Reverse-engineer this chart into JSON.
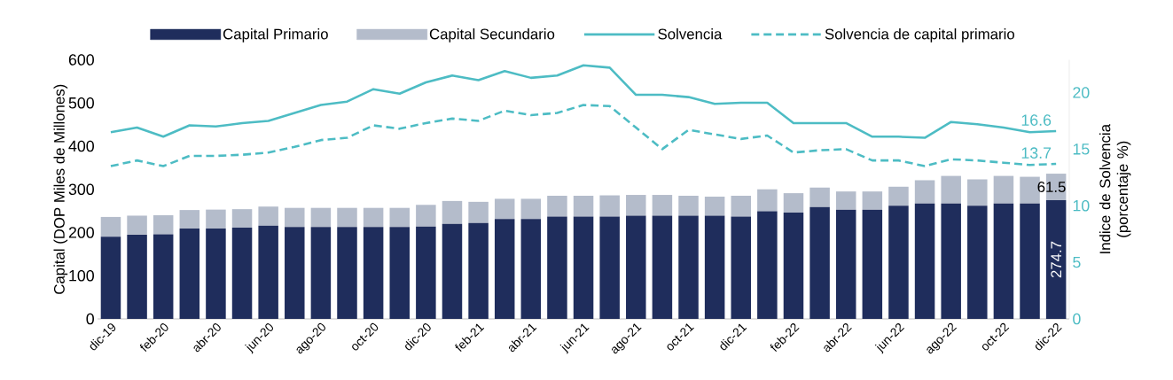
{
  "chart_data": {
    "type": "bar",
    "stacked": true,
    "categories": [
      "dic-19",
      null,
      "feb-20",
      null,
      "abr-20",
      null,
      "jun-20",
      null,
      "ago-20",
      null,
      "oct-20",
      null,
      "dic-20",
      null,
      "feb-21",
      null,
      "abr-21",
      null,
      "jun-21",
      null,
      "ago-21",
      null,
      "oct-21",
      null,
      "dic-21",
      null,
      "feb-22",
      null,
      "abr-22",
      null,
      "jun-22",
      null,
      "ago-22",
      null,
      "oct-22",
      null,
      "dic-22"
    ],
    "ylabel": "Capital (DOP Miles de Millones)",
    "y2label": "Indice de Solvencia (porcentaje %)",
    "ylim": [
      0,
      600
    ],
    "yticks": [
      0,
      100,
      200,
      300,
      400,
      500,
      600
    ],
    "y2lim": [
      0,
      22.9
    ],
    "y2ticks": [
      0,
      5,
      10,
      15,
      20
    ],
    "legend": "top",
    "series": [
      {
        "name": "Capital Primario",
        "color": "#1f2d5c",
        "values": [
          190,
          195,
          196,
          209,
          209,
          211,
          216,
          213,
          213,
          213,
          213,
          213,
          214,
          220,
          222,
          231,
          231,
          237,
          237,
          237,
          239,
          239,
          239,
          239,
          237,
          249,
          246,
          259,
          253,
          253,
          262,
          267,
          267,
          262,
          267,
          267,
          274.7
        ],
        "value_labels": [
          null,
          null,
          null,
          null,
          null,
          null,
          null,
          null,
          null,
          null,
          null,
          null,
          null,
          null,
          null,
          null,
          null,
          null,
          null,
          null,
          null,
          null,
          null,
          null,
          null,
          null,
          null,
          null,
          null,
          null,
          null,
          null,
          null,
          null,
          null,
          null,
          "274.7"
        ]
      },
      {
        "name": "Capital Secundario",
        "color": "#b4bccb",
        "values": [
          46,
          44,
          44,
          43,
          44,
          43,
          44,
          44,
          44,
          44,
          44,
          44,
          50,
          53,
          49,
          47,
          47,
          48,
          48,
          49,
          48,
          48,
          46,
          44,
          48,
          51,
          45,
          45,
          42,
          42,
          44,
          54,
          64,
          61,
          64,
          62,
          61.5
        ],
        "value_labels": [
          null,
          null,
          null,
          null,
          null,
          null,
          null,
          null,
          null,
          null,
          null,
          null,
          null,
          null,
          null,
          null,
          null,
          null,
          null,
          null,
          null,
          null,
          null,
          null,
          null,
          null,
          null,
          null,
          null,
          null,
          null,
          null,
          null,
          null,
          null,
          null,
          "61.5"
        ]
      },
      {
        "name": "Solvencia",
        "type": "line",
        "axis": "y2",
        "line_style": "solid",
        "color": "#4dbcc4",
        "values": [
          16.5,
          16.9,
          16.1,
          17.1,
          17.0,
          17.3,
          17.5,
          18.2,
          18.9,
          19.2,
          20.3,
          19.9,
          20.9,
          21.5,
          21.1,
          21.9,
          21.3,
          21.5,
          22.4,
          22.2,
          19.8,
          19.8,
          19.6,
          19.0,
          19.1,
          19.1,
          17.3,
          17.3,
          17.3,
          16.1,
          16.1,
          16.0,
          17.4,
          17.2,
          16.9,
          16.5,
          16.6
        ],
        "value_labels": [
          null,
          null,
          null,
          null,
          null,
          null,
          null,
          null,
          null,
          null,
          null,
          null,
          null,
          null,
          null,
          null,
          null,
          null,
          null,
          null,
          null,
          null,
          null,
          null,
          null,
          null,
          null,
          null,
          null,
          null,
          null,
          null,
          null,
          null,
          null,
          null,
          "16.6"
        ]
      },
      {
        "name": "Solvencia de capital primario",
        "type": "line",
        "axis": "y2",
        "line_style": "dashed",
        "color": "#4dbcc4",
        "values": [
          13.5,
          14.0,
          13.5,
          14.4,
          14.4,
          14.5,
          14.7,
          15.2,
          15.8,
          16.0,
          17.1,
          16.8,
          17.3,
          17.7,
          17.5,
          18.4,
          18.0,
          18.2,
          18.9,
          18.8,
          16.9,
          15.0,
          16.7,
          16.3,
          15.9,
          16.2,
          14.7,
          14.9,
          15.0,
          14.0,
          14.0,
          13.5,
          14.1,
          14.0,
          13.8,
          13.6,
          13.7
        ],
        "value_labels": [
          null,
          null,
          null,
          null,
          null,
          null,
          null,
          null,
          null,
          null,
          null,
          null,
          null,
          null,
          null,
          null,
          null,
          null,
          null,
          null,
          null,
          null,
          null,
          null,
          null,
          null,
          null,
          null,
          null,
          null,
          null,
          null,
          null,
          null,
          null,
          null,
          "13.7"
        ]
      }
    ]
  }
}
